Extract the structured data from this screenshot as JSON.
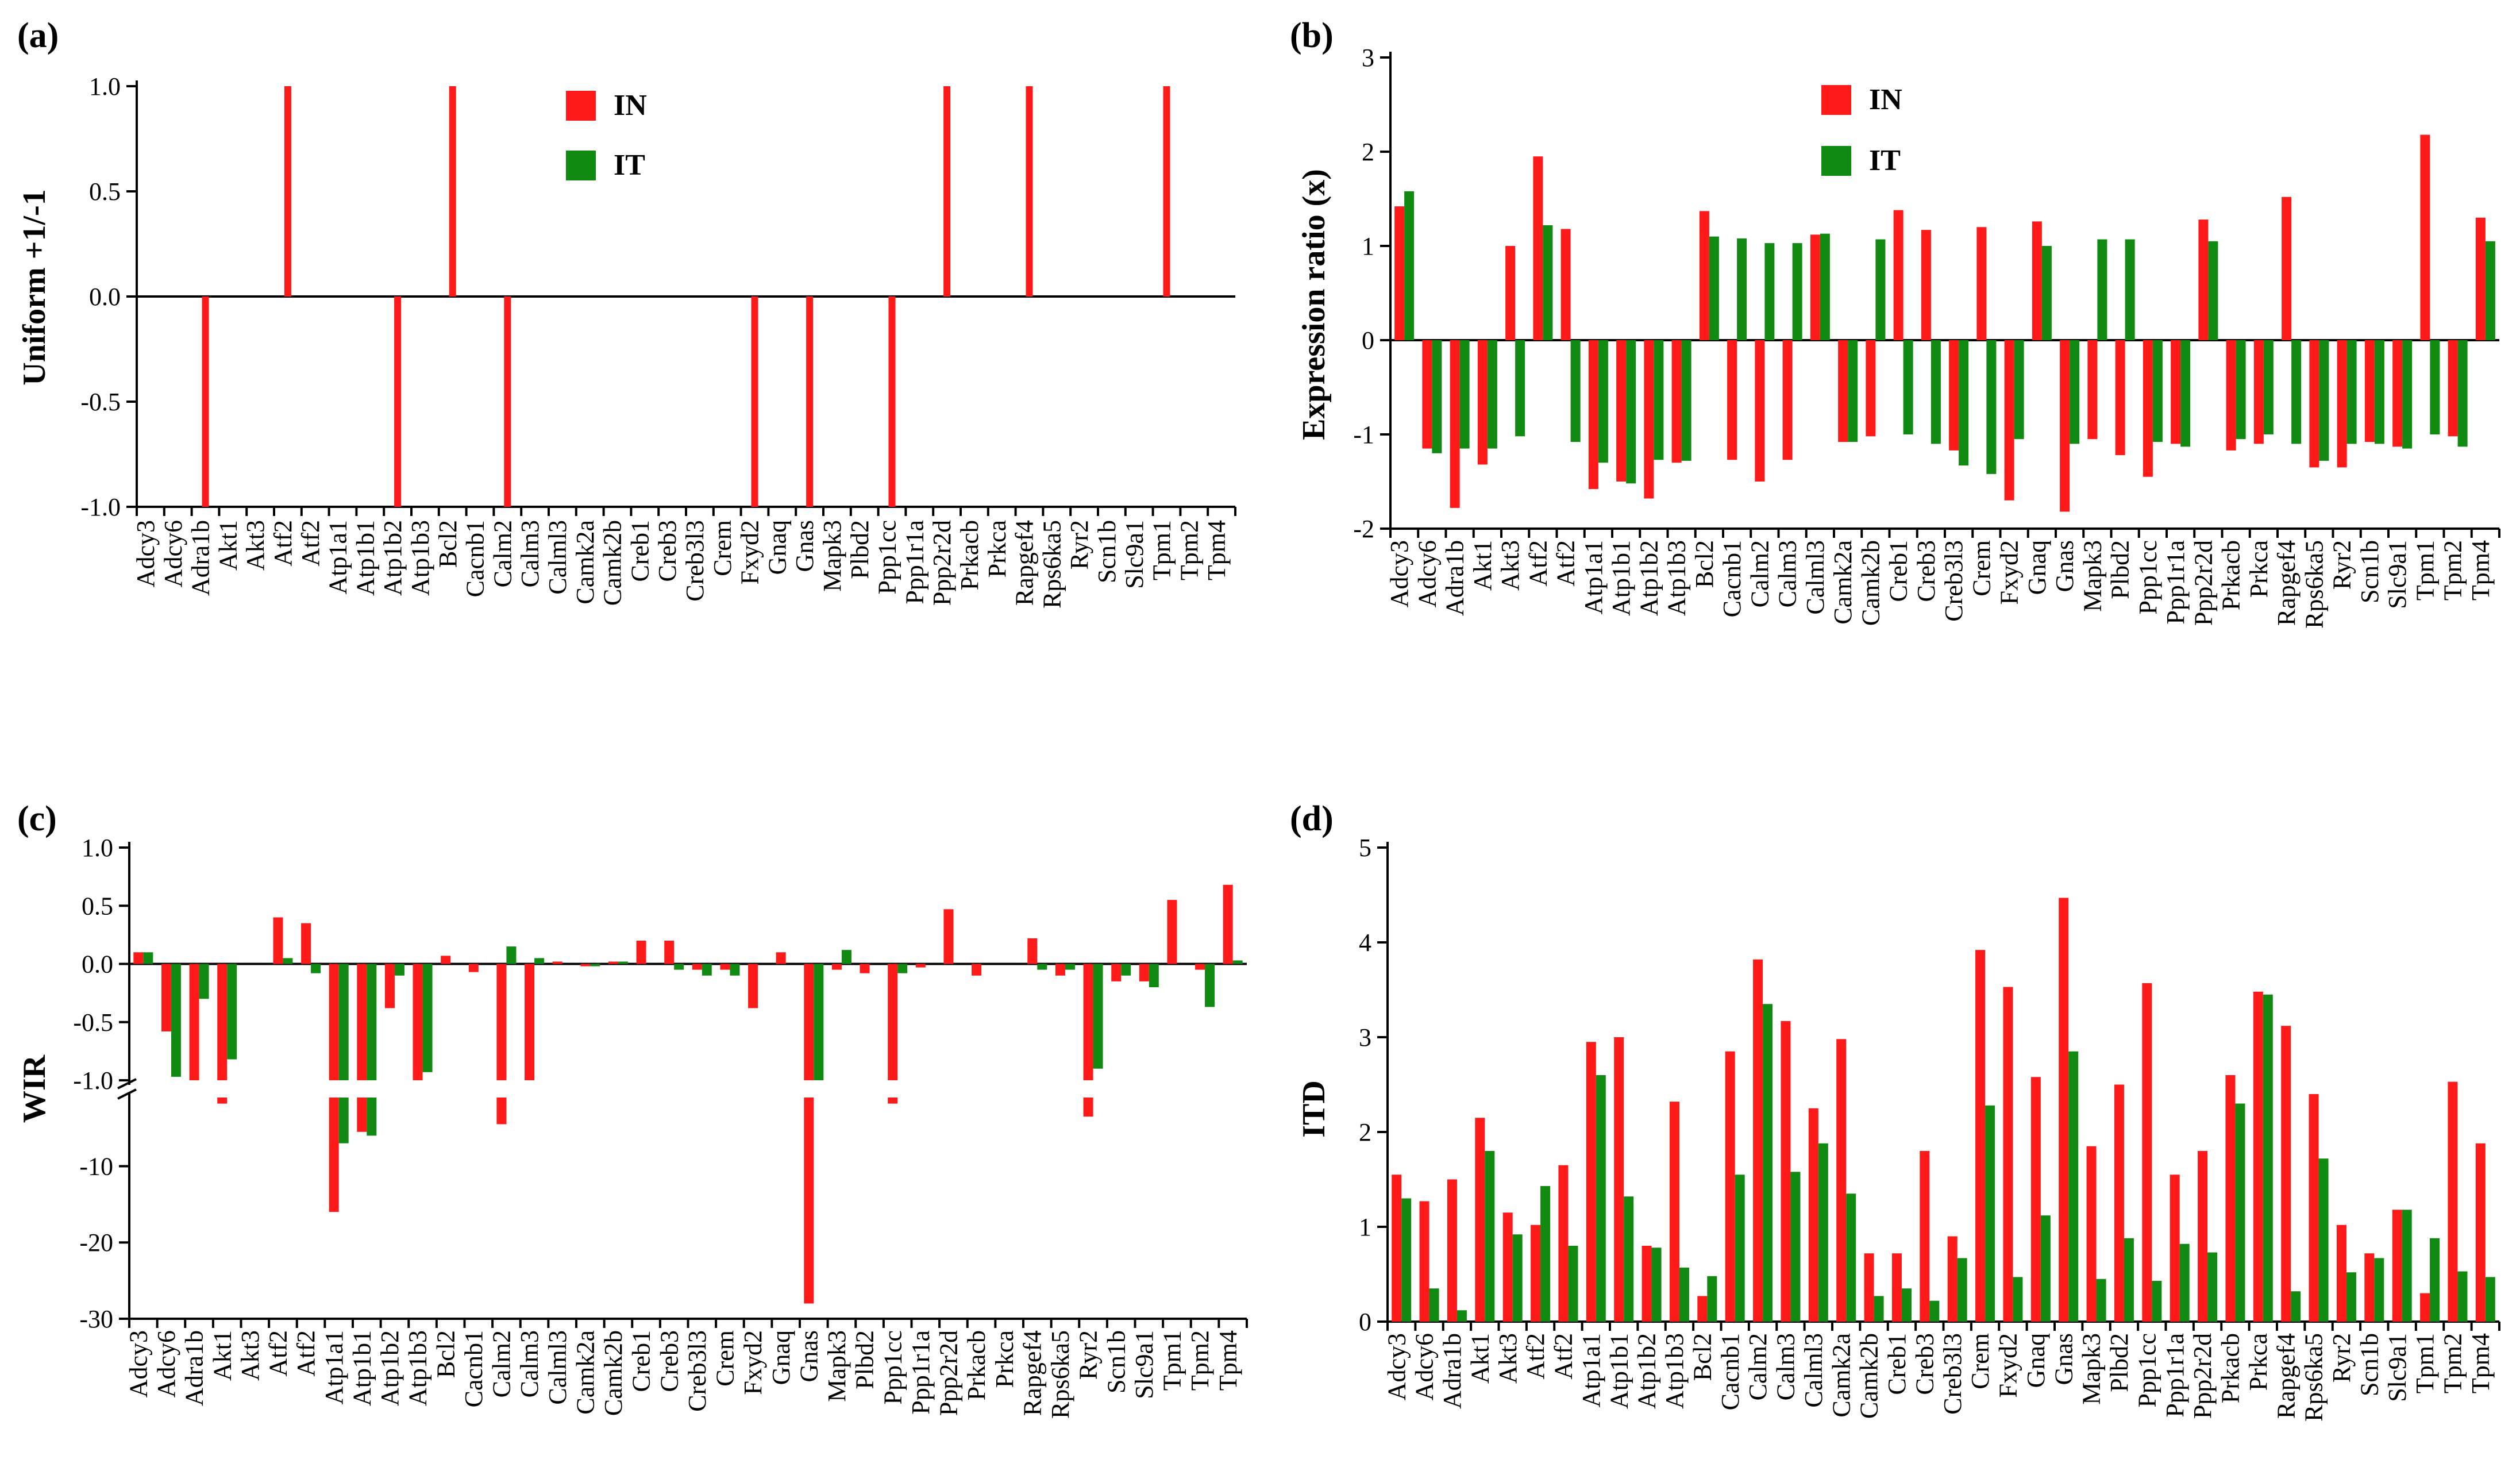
{
  "genes": [
    "Adcy3",
    "Adcy6",
    "Adra1b",
    "Akt1",
    "Akt3",
    "Atf2",
    "Atf2",
    "Atp1a1",
    "Atp1b1",
    "Atp1b2",
    "Atp1b3",
    "Bcl2",
    "Cacnb1",
    "Calm2",
    "Calm3",
    "Calml3",
    "Camk2a",
    "Camk2b",
    "Creb1",
    "Creb3",
    "Creb3l3",
    "Crem",
    "Fxyd2",
    "Gnaq",
    "Gnas",
    "Mapk3",
    "Plbd2",
    "Ppp1cc",
    "Ppp1r1a",
    "Ppp2r2d",
    "Prkacb",
    "Prkca",
    "Rapgef4",
    "Rps6ka5",
    "Ryr2",
    "Scn1b",
    "Slc9a1",
    "Tpm1",
    "Tpm2",
    "Tpm4"
  ],
  "colors": {
    "IN": "#ff1a1a",
    "IT": "#118a11"
  },
  "chart_data": [
    {
      "panel": "(a)",
      "type": "bar",
      "title": "",
      "ylabel": "Uniform +1/-1",
      "ylim": [
        -1.0,
        1.0
      ],
      "yticks": [
        "1.0",
        "0.5",
        "0.0",
        "-0.5",
        "-1.0"
      ],
      "legend": {
        "position": "top-center",
        "entries": [
          "IN",
          "IT"
        ]
      },
      "series": [
        {
          "name": "IN",
          "values": [
            0,
            0,
            -1,
            0,
            0,
            1,
            0,
            0,
            0,
            -1,
            0,
            1,
            0,
            -1,
            0,
            0,
            0,
            0,
            0,
            0,
            0,
            0,
            -1,
            0,
            -1,
            0,
            0,
            -1,
            0,
            1,
            0,
            0,
            1,
            0,
            0,
            0,
            0,
            1,
            0,
            0
          ]
        },
        {
          "name": "IT",
          "values": [
            0,
            0,
            0,
            0,
            0,
            0,
            0,
            0,
            0,
            0,
            0,
            0,
            0,
            0,
            0,
            0,
            0,
            0,
            0,
            0,
            0,
            0,
            0,
            0,
            0,
            0,
            0,
            0,
            0,
            0,
            0,
            0,
            0,
            0,
            0,
            0,
            0,
            0,
            0,
            0
          ]
        }
      ]
    },
    {
      "panel": "(b)",
      "type": "bar",
      "title": "",
      "ylabel": "Expression ratio (x)",
      "ylim": [
        -2,
        3
      ],
      "yticks": [
        "3",
        "2",
        "1",
        "0",
        "-1",
        "-2"
      ],
      "legend": {
        "position": "top-center",
        "entries": [
          "IN",
          "IT"
        ]
      },
      "series": [
        {
          "name": "IN",
          "values": [
            1.42,
            -1.15,
            -1.78,
            -1.32,
            1.0,
            1.95,
            1.18,
            -1.58,
            -1.5,
            -1.68,
            -1.3,
            1.37,
            -1.27,
            -1.5,
            -1.27,
            1.12,
            -1.08,
            -1.02,
            1.38,
            1.17,
            -1.17,
            1.2,
            -1.7,
            1.26,
            -1.82,
            -1.05,
            -1.22,
            -1.45,
            -1.1,
            1.28,
            -1.17,
            -1.1,
            1.52,
            -1.35,
            -1.35,
            -1.08,
            -1.13,
            2.18,
            -1.02,
            1.3
          ]
        },
        {
          "name": "IT",
          "values": [
            1.58,
            -1.2,
            -1.15,
            -1.15,
            -1.02,
            1.22,
            -1.08,
            -1.3,
            -1.52,
            -1.27,
            -1.28,
            1.1,
            1.08,
            1.03,
            1.03,
            1.13,
            -1.08,
            1.07,
            -1.0,
            -1.1,
            -1.33,
            -1.42,
            -1.05,
            1.0,
            -1.1,
            1.07,
            1.07,
            -1.08,
            -1.13,
            1.05,
            -1.05,
            -1.0,
            -1.1,
            -1.28,
            -1.1,
            -1.1,
            -1.15,
            -1.0,
            -1.13,
            1.05
          ]
        }
      ]
    },
    {
      "panel": "(c)",
      "type": "bar",
      "title": "",
      "ylabel": "WIR",
      "ylim": [
        -30,
        1.0
      ],
      "axis_break": "between -1.0 and -10 (upper segment linear -1.0 to 1.0, lower segment linear -30 to -1)",
      "yticks": [
        "1.0",
        "0.5",
        "0.0",
        "-0.5",
        "-1.0",
        "-10",
        "-20",
        "-30"
      ],
      "series": [
        {
          "name": "IN",
          "values": [
            0.1,
            -0.58,
            -1.0,
            -1.8,
            0,
            0.4,
            0.35,
            -16,
            -5.5,
            -0.38,
            -1.0,
            0.07,
            -0.07,
            -4.5,
            -1.0,
            0.02,
            -0.02,
            0.02,
            0.2,
            0.2,
            -0.05,
            -0.05,
            -0.38,
            0.1,
            -28,
            -0.05,
            -0.08,
            -1.8,
            -0.03,
            0.47,
            -0.1,
            0,
            0.22,
            -0.1,
            -3.5,
            -0.15,
            -0.15,
            0.55,
            -0.05,
            0.68
          ]
        },
        {
          "name": "IT",
          "values": [
            0.1,
            -0.97,
            -0.3,
            -0.82,
            0,
            0.05,
            -0.08,
            -7,
            -6,
            -0.1,
            -0.93,
            0,
            0,
            0.15,
            0.05,
            0,
            -0.02,
            0.02,
            0,
            -0.05,
            -0.1,
            -0.1,
            0,
            0,
            -1.0,
            0.12,
            0,
            -0.08,
            0,
            0,
            0,
            0,
            -0.05,
            -0.05,
            -0.9,
            -0.1,
            -0.2,
            0,
            -0.37,
            0.03
          ]
        }
      ]
    },
    {
      "panel": "(d)",
      "type": "bar",
      "title": "",
      "ylabel": "ITD",
      "ylim": [
        0,
        5
      ],
      "yticks": [
        "5",
        "4",
        "3",
        "2",
        "1",
        "0"
      ],
      "series": [
        {
          "name": "IN",
          "values": [
            1.55,
            1.27,
            1.5,
            2.15,
            1.15,
            1.02,
            1.65,
            2.95,
            3.0,
            0.8,
            2.32,
            0.27,
            2.85,
            3.82,
            3.17,
            2.25,
            2.98,
            0.72,
            0.72,
            1.8,
            0.9,
            3.92,
            3.53,
            2.58,
            4.47,
            1.85,
            2.5,
            3.57,
            1.55,
            1.8,
            2.6,
            3.48,
            3.12,
            2.4,
            1.02,
            0.72,
            1.18,
            0.3,
            2.53,
            1.88
          ]
        },
        {
          "name": "IT",
          "values": [
            1.3,
            0.35,
            0.12,
            1.8,
            0.92,
            1.43,
            0.8,
            2.6,
            1.32,
            0.78,
            0.57,
            0.48,
            1.55,
            3.35,
            1.58,
            1.88,
            1.35,
            0.27,
            0.35,
            0.22,
            0.67,
            2.28,
            0.47,
            1.12,
            2.85,
            0.45,
            0.88,
            0.43,
            0.82,
            0.73,
            2.3,
            3.45,
            0.32,
            1.72,
            0.52,
            0.67,
            1.18,
            0.88,
            0.53,
            0.47
          ]
        }
      ]
    }
  ]
}
